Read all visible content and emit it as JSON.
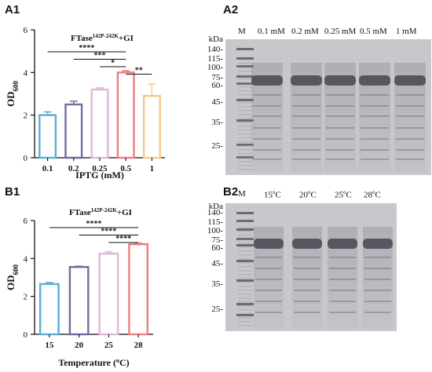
{
  "panels": {
    "a1": "A1",
    "a2": "A2",
    "b1": "B1",
    "b2": "B2"
  },
  "chart_data": [
    {
      "type": "bar",
      "title": "FTase142P-242K+GI",
      "title_base": "FTase",
      "title_sup": "142P-242K",
      "title_suffix": "+GI",
      "xlabel": "IPTG (mM)",
      "ylabel_base": "OD",
      "ylabel_sub": "600",
      "categories": [
        "0.1",
        "0.2",
        "0.25",
        "0.5",
        "1"
      ],
      "values": [
        2.0,
        2.5,
        3.2,
        4.0,
        2.9
      ],
      "errors": [
        0.15,
        0.15,
        0.08,
        0.08,
        0.55
      ],
      "colors": [
        "#5aaed6",
        "#7a66a8",
        "#e2b6dc",
        "#f07c80",
        "#f8c88a"
      ],
      "ylim": [
        0,
        6
      ],
      "yticks": [
        "0",
        "2",
        "4",
        "6"
      ],
      "significance": [
        {
          "from": 0,
          "to": 3,
          "label": "****"
        },
        {
          "from": 1,
          "to": 3,
          "label": "***"
        },
        {
          "from": 2,
          "to": 3,
          "label": "*"
        },
        {
          "from": 3,
          "to": 4,
          "label": "**"
        }
      ]
    },
    {
      "type": "bar",
      "title": "FTase142P-242K+GI",
      "title_base": "FTase",
      "title_sup": "142P-242K",
      "title_suffix": "+GI",
      "xlabel_base": "Temperature (",
      "xlabel_sup": "o",
      "xlabel_suffix": "C)",
      "ylabel_base": "OD",
      "ylabel_sub": "600",
      "categories": [
        "15",
        "20",
        "25",
        "28"
      ],
      "values": [
        2.65,
        3.55,
        4.25,
        4.75
      ],
      "errors": [
        0.08,
        0.04,
        0.1,
        0.06
      ],
      "colors": [
        "#5aaed6",
        "#7a66a8",
        "#e2b6dc",
        "#f07c80"
      ],
      "ylim": [
        0,
        6
      ],
      "yticks": [
        "0",
        "2",
        "4",
        "6"
      ],
      "significance": [
        {
          "from": 0,
          "to": 3,
          "label": "****"
        },
        {
          "from": 1,
          "to": 3,
          "label": "****"
        },
        {
          "from": 2,
          "to": 3,
          "label": "****"
        }
      ]
    }
  ],
  "gel_a2": {
    "m_label": "M",
    "lanes": [
      "0.1 mM",
      "0.2 mM",
      "0.25 mM",
      "0.5 mM",
      "1 mM"
    ],
    "unit": "kDa",
    "markers": [
      "140-",
      "115-",
      "100-",
      "75-",
      "60-",
      "45-",
      "35-",
      "25-"
    ]
  },
  "gel_b2": {
    "m_label": "M",
    "lanes_base": [
      "15",
      "20",
      "25",
      "28"
    ],
    "deg": "o",
    "deg_unit": "C",
    "unit": "kDa",
    "markers": [
      "140-",
      "115-",
      "100-",
      "75-",
      "60-",
      "45-",
      "35-",
      "25-"
    ]
  }
}
